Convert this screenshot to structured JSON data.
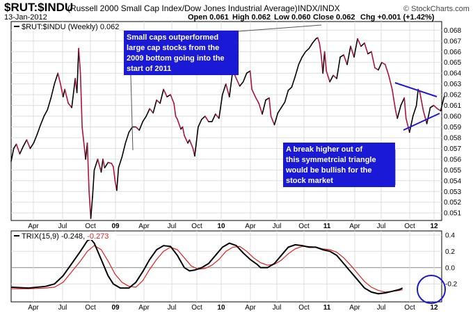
{
  "header": {
    "ticker": "$RUT:$INDU",
    "description": "(Russell 2000 Small Cap Index/Dow Jones Industrial Average)",
    "exchange": "INDX/INDX",
    "date": "13-Jan-2012",
    "open": "Open 0.061",
    "high": "High 0.062",
    "low": "Low 0.060",
    "close": "Close 0.062",
    "change": "Chg +0.001 (+1.42%)",
    "credit": "© StockCharts.com"
  },
  "price_panel": {
    "legend": "$RUT:$INDU (Weekly) 0.062",
    "annotations": [
      "Small caps outperformed large cap stocks from the 2009 bottom going into the start of 2011",
      "A break higher out of this symmetrcial triangle would be bullish for the stock market"
    ]
  },
  "trix_panel": {
    "legend_prefix": "TRIX(15,9)",
    "value_1": "-0.248",
    "value_2": "-0.273"
  },
  "colors": {
    "price_up": "#000000",
    "price_down": "#b0103a",
    "trix_line": "#000000",
    "signal_line": "#e0201c",
    "annotation_box": "#1a1ad6",
    "triangle_lines": "#1a1ad6",
    "highlight_circle": "#1a1ad6",
    "grid": "#dddddd"
  },
  "chart_data": [
    {
      "type": "line",
      "title": "$RUT:$INDU (Weekly)",
      "y_ticks": [
        "0.051",
        "0.052",
        "0.053",
        "0.054",
        "0.055",
        "0.056",
        "0.057",
        "0.058",
        "0.059",
        "0.060",
        "0.061",
        "0.062",
        "0.063",
        "0.064",
        "0.065",
        "0.066",
        "0.067",
        "0.068"
      ],
      "ylim": [
        0.0503,
        0.0688
      ],
      "x_ticks": [
        "Apr",
        "Jul",
        "Oct",
        "09",
        "Apr",
        "Jul",
        "Oct",
        "10",
        "Apr",
        "Jul",
        "Oct",
        "11",
        "Apr",
        "Jul",
        "Oct",
        "12"
      ],
      "grid": true,
      "series": [
        {
          "name": "$RUT:$INDU",
          "values": [
            [
              0,
              0.0558
            ],
            [
              1.5,
              0.057
            ],
            [
              3,
              0.0574
            ],
            [
              5,
              0.0565
            ],
            [
              7,
              0.0572
            ],
            [
              9,
              0.0578
            ],
            [
              11,
              0.057
            ],
            [
              13,
              0.0575
            ],
            [
              15,
              0.0583
            ],
            [
              17,
              0.0592
            ],
            [
              19,
              0.06
            ],
            [
              21,
              0.0606
            ],
            [
              23,
              0.0617
            ],
            [
              25,
              0.063
            ],
            [
              27,
              0.064
            ],
            [
              28.5,
              0.063
            ],
            [
              30,
              0.0618
            ],
            [
              31,
              0.0625
            ],
            [
              33,
              0.0612
            ],
            [
              35,
              0.0608
            ],
            [
              37,
              0.0635
            ],
            [
              38,
              0.0622
            ],
            [
              39,
              0.0663
            ],
            [
              40,
              0.064
            ],
            [
              41,
              0.059
            ],
            [
              43,
              0.056
            ],
            [
              44,
              0.0575
            ],
            [
              45,
              0.053
            ],
            [
              46,
              0.0505
            ],
            [
              47,
              0.0525
            ],
            [
              48,
              0.055
            ],
            [
              50,
              0.056
            ],
            [
              52,
              0.0548
            ],
            [
              53,
              0.056
            ],
            [
              54,
              0.0552
            ],
            [
              56,
              0.0557
            ],
            [
              58,
              0.0556
            ],
            [
              59,
              0.0553
            ],
            [
              60,
              0.054
            ],
            [
              61,
              0.0531
            ],
            [
              62,
              0.0552
            ],
            [
              64,
              0.0562
            ],
            [
              66,
              0.0575
            ],
            [
              68,
              0.0585
            ],
            [
              70,
              0.059
            ],
            [
              72,
              0.059
            ],
            [
              74,
              0.0587
            ],
            [
              76,
              0.0595
            ],
            [
              78,
              0.06
            ],
            [
              80,
              0.0607
            ],
            [
              82,
              0.0603
            ],
            [
              84,
              0.0615
            ],
            [
              86,
              0.0612
            ],
            [
              88,
              0.0625
            ],
            [
              90,
              0.0618
            ],
            [
              92,
              0.062
            ],
            [
              94,
              0.0612
            ],
            [
              95,
              0.06
            ],
            [
              96,
              0.0597
            ],
            [
              98,
              0.0588
            ],
            [
              99,
              0.059
            ],
            [
              100,
              0.0582
            ],
            [
              102,
              0.0575
            ],
            [
              103,
              0.0578
            ],
            [
              105,
              0.057
            ],
            [
              106,
              0.0563
            ],
            [
              108,
              0.059
            ],
            [
              110,
              0.0597
            ],
            [
              112,
              0.06
            ],
            [
              114,
              0.0595
            ],
            [
              116,
              0.0595
            ],
            [
              118,
              0.0602
            ],
            [
              120,
              0.0598
            ],
            [
              122,
              0.062
            ],
            [
              124,
              0.063
            ],
            [
              126,
              0.0618
            ],
            [
              128,
              0.0643
            ],
            [
              130,
              0.0635
            ],
            [
              132,
              0.0628
            ],
            [
              134,
              0.0632
            ],
            [
              136,
              0.064
            ],
            [
              138,
              0.0642
            ],
            [
              139,
              0.0625
            ],
            [
              141,
              0.0618
            ],
            [
              143,
              0.0612
            ],
            [
              145,
              0.0602
            ],
            [
              147,
              0.0615
            ],
            [
              149,
              0.0617
            ],
            [
              150,
              0.06
            ],
            [
              152,
              0.0592
            ],
            [
              154,
              0.0603
            ],
            [
              156,
              0.0608
            ],
            [
              158,
              0.0613
            ],
            [
              160,
              0.0624
            ],
            [
              162,
              0.0627
            ],
            [
              164,
              0.0637
            ],
            [
              166,
              0.0648
            ],
            [
              168,
              0.0655
            ],
            [
              170,
              0.066
            ],
            [
              172,
              0.0663
            ],
            [
              174,
              0.0668
            ],
            [
              176,
              0.0672
            ],
            [
              177,
              0.0673
            ],
            [
              178,
              0.0668
            ],
            [
              179,
              0.0657
            ],
            [
              180,
              0.064
            ],
            [
              181,
              0.066
            ],
            [
              182,
              0.0642
            ],
            [
              184,
              0.0632
            ],
            [
              186,
              0.0638
            ],
            [
              188,
              0.0635
            ],
            [
              190,
              0.0655
            ],
            [
              192,
              0.0657
            ],
            [
              194,
              0.0648
            ],
            [
              196,
              0.0665
            ],
            [
              198,
              0.0655
            ],
            [
              200,
              0.0672
            ],
            [
              202,
              0.0665
            ],
            [
              204,
              0.0668
            ],
            [
              206,
              0.0658
            ],
            [
              208,
              0.066
            ],
            [
              210,
              0.0645
            ],
            [
              212,
              0.0643
            ],
            [
              214,
              0.065
            ],
            [
              216,
              0.0648
            ],
            [
              218,
              0.0638
            ],
            [
              220,
              0.0625
            ],
            [
              221,
              0.0615
            ],
            [
              222,
              0.0605
            ],
            [
              223,
              0.0598
            ],
            [
              225,
              0.061
            ],
            [
              227,
              0.0617
            ],
            [
              228,
              0.0598
            ],
            [
              230,
              0.0585
            ],
            [
              232,
              0.06
            ],
            [
              234,
              0.061
            ],
            [
              235,
              0.0625
            ],
            [
              236,
              0.0622
            ],
            [
              238,
              0.0605
            ],
            [
              240,
              0.0593
            ],
            [
              242,
              0.0608
            ],
            [
              244,
              0.061
            ],
            [
              246,
              0.0607
            ],
            [
              248,
              0.0605
            ],
            [
              250,
              0.0618
            ]
          ]
        }
      ]
    },
    {
      "type": "line",
      "title": "TRIX(15,9)",
      "y_ticks": [
        "0.4",
        "0.2",
        "0.0",
        "-0.2"
      ],
      "ylim": [
        -0.42,
        0.45
      ],
      "grid": true,
      "series": [
        {
          "name": "TRIX(15,9)",
          "values": [
            [
              0,
              -0.24
            ],
            [
              10,
              -0.25
            ],
            [
              20,
              -0.23
            ],
            [
              25,
              -0.2
            ],
            [
              30,
              -0.1
            ],
            [
              35,
              0.05
            ],
            [
              40,
              0.2
            ],
            [
              44,
              0.33
            ],
            [
              46,
              0.35
            ],
            [
              48,
              0.3
            ],
            [
              52,
              0.1
            ],
            [
              56,
              -0.1
            ],
            [
              59,
              -0.2
            ],
            [
              63,
              -0.25
            ],
            [
              68,
              -0.25
            ],
            [
              72,
              -0.18
            ],
            [
              76,
              -0.05
            ],
            [
              80,
              0.1
            ],
            [
              84,
              0.22
            ],
            [
              88,
              0.27
            ],
            [
              92,
              0.26
            ],
            [
              96,
              0.15
            ],
            [
              100,
              0.0
            ],
            [
              103,
              -0.04
            ],
            [
              106,
              -0.03
            ],
            [
              110,
              0.0
            ],
            [
              114,
              0.05
            ],
            [
              118,
              0.15
            ],
            [
              122,
              0.25
            ],
            [
              126,
              0.3
            ],
            [
              130,
              0.27
            ],
            [
              134,
              0.18
            ],
            [
              138,
              0.1
            ],
            [
              142,
              0.04
            ],
            [
              144,
              0.0
            ],
            [
              148,
              0.0
            ],
            [
              152,
              0.05
            ],
            [
              156,
              0.15
            ],
            [
              160,
              0.25
            ],
            [
              164,
              0.28
            ],
            [
              168,
              0.27
            ],
            [
              172,
              0.25
            ],
            [
              176,
              0.25
            ],
            [
              180,
              0.22
            ],
            [
              184,
              0.2
            ],
            [
              188,
              0.15
            ],
            [
              192,
              0.05
            ],
            [
              196,
              -0.05
            ],
            [
              200,
              -0.15
            ],
            [
              204,
              -0.25
            ],
            [
              208,
              -0.3
            ],
            [
              212,
              -0.32
            ],
            [
              216,
              -0.31
            ],
            [
              220,
              -0.29
            ],
            [
              224,
              -0.27
            ],
            [
              226,
              -0.25
            ]
          ]
        },
        {
          "name": "TRIX(15,9) signal",
          "values": [
            [
              0,
              -0.26
            ],
            [
              10,
              -0.26
            ],
            [
              20,
              -0.25
            ],
            [
              25,
              -0.24
            ],
            [
              30,
              -0.18
            ],
            [
              35,
              -0.05
            ],
            [
              40,
              0.08
            ],
            [
              44,
              0.2
            ],
            [
              48,
              0.27
            ],
            [
              52,
              0.22
            ],
            [
              56,
              0.08
            ],
            [
              60,
              -0.08
            ],
            [
              64,
              -0.18
            ],
            [
              68,
              -0.23
            ],
            [
              72,
              -0.24
            ],
            [
              76,
              -0.16
            ],
            [
              80,
              -0.02
            ],
            [
              84,
              0.1
            ],
            [
              88,
              0.2
            ],
            [
              92,
              0.25
            ],
            [
              96,
              0.22
            ],
            [
              100,
              0.12
            ],
            [
              104,
              0.02
            ],
            [
              108,
              -0.02
            ],
            [
              112,
              -0.01
            ],
            [
              116,
              0.03
            ],
            [
              120,
              0.1
            ],
            [
              124,
              0.2
            ],
            [
              128,
              0.25
            ],
            [
              132,
              0.26
            ],
            [
              136,
              0.2
            ],
            [
              140,
              0.12
            ],
            [
              144,
              0.06
            ],
            [
              148,
              0.03
            ],
            [
              152,
              0.04
            ],
            [
              156,
              0.09
            ],
            [
              160,
              0.17
            ],
            [
              164,
              0.23
            ],
            [
              168,
              0.26
            ],
            [
              172,
              0.26
            ],
            [
              176,
              0.25
            ],
            [
              180,
              0.23
            ],
            [
              184,
              0.22
            ],
            [
              188,
              0.19
            ],
            [
              192,
              0.12
            ],
            [
              196,
              0.03
            ],
            [
              200,
              -0.07
            ],
            [
              204,
              -0.17
            ],
            [
              208,
              -0.24
            ],
            [
              212,
              -0.28
            ],
            [
              216,
              -0.3
            ],
            [
              220,
              -0.29
            ],
            [
              224,
              -0.28
            ],
            [
              226,
              -0.27
            ]
          ]
        }
      ]
    }
  ]
}
